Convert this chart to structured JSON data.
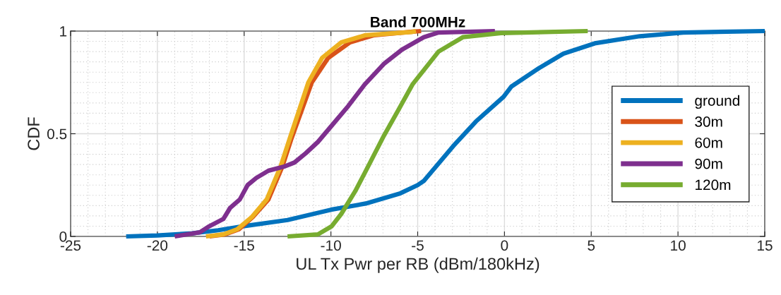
{
  "chart_data": {
    "type": "line",
    "title": "Band 700MHz",
    "xlabel": "UL Tx Pwr per RB (dBm/180kHz)",
    "ylabel": "CDF",
    "xlim": [
      -25,
      15
    ],
    "xticks": [
      -25,
      -20,
      -15,
      -10,
      -5,
      0,
      5,
      10,
      15
    ],
    "ylim": [
      0,
      1
    ],
    "yticks": [
      0,
      0.5,
      1
    ],
    "grid": true,
    "legend": "right",
    "line_style": "solid",
    "marker": "none",
    "series": [
      {
        "name": "ground",
        "color": "#0072bd",
        "x": [
          -21.8,
          -20,
          -18,
          -16.5,
          -15,
          -12.5,
          -10,
          -8,
          -6,
          -5,
          -4.65,
          -2.95,
          -1.64,
          -0.05,
          0.4,
          2.0,
          3.4,
          5.2,
          7.8,
          10.3,
          15
        ],
        "values": [
          0,
          0.005,
          0.015,
          0.03,
          0.05,
          0.08,
          0.13,
          0.16,
          0.21,
          0.25,
          0.27,
          0.44,
          0.56,
          0.68,
          0.73,
          0.82,
          0.89,
          0.94,
          0.975,
          0.993,
          1.0
        ]
      },
      {
        "name": "30m",
        "color": "#d95319",
        "x": [
          -17.0,
          -16.1,
          -15.3,
          -14.5,
          -13.6,
          -12.8,
          -12.3,
          -11.7,
          -11.1,
          -10.15,
          -8.9,
          -7.5,
          -5.3,
          -4.8
        ],
        "values": [
          0,
          0.01,
          0.035,
          0.095,
          0.18,
          0.34,
          0.47,
          0.61,
          0.75,
          0.87,
          0.945,
          0.98,
          0.997,
          1.0
        ]
      },
      {
        "name": "60m",
        "color": "#edb120",
        "x": [
          -17.2,
          -16.2,
          -15.4,
          -14.55,
          -13.7,
          -12.9,
          -12.4,
          -11.85,
          -11.3,
          -10.5,
          -9.4,
          -8.0,
          -5.35,
          -5.1
        ],
        "values": [
          0,
          0.01,
          0.035,
          0.095,
          0.18,
          0.34,
          0.47,
          0.61,
          0.75,
          0.87,
          0.945,
          0.98,
          0.995,
          1.0
        ]
      },
      {
        "name": "90m",
        "color": "#7e2f8e",
        "x": [
          -19,
          -17.55,
          -17,
          -16.2,
          -15.8,
          -15.25,
          -14.8,
          -14.3,
          -13.6,
          -12.7,
          -12.1,
          -11.45,
          -10.75,
          -9.95,
          -9.0,
          -8.05,
          -6.95,
          -5.9,
          -4.65,
          -3.8,
          -0.55
        ],
        "values": [
          0,
          0.02,
          0.05,
          0.085,
          0.14,
          0.18,
          0.25,
          0.285,
          0.32,
          0.34,
          0.36,
          0.405,
          0.46,
          0.54,
          0.635,
          0.74,
          0.84,
          0.91,
          0.97,
          0.993,
          1.0
        ]
      },
      {
        "name": "120m",
        "color": "#77ac30",
        "x": [
          -12.5,
          -10.75,
          -9.95,
          -9.4,
          -8.6,
          -7.8,
          -6.95,
          -6.15,
          -5.3,
          -3.8,
          -2.4,
          -0.2,
          4.8
        ],
        "values": [
          0,
          0.01,
          0.05,
          0.11,
          0.22,
          0.35,
          0.49,
          0.61,
          0.74,
          0.9,
          0.97,
          0.99,
          1.0
        ]
      }
    ]
  }
}
